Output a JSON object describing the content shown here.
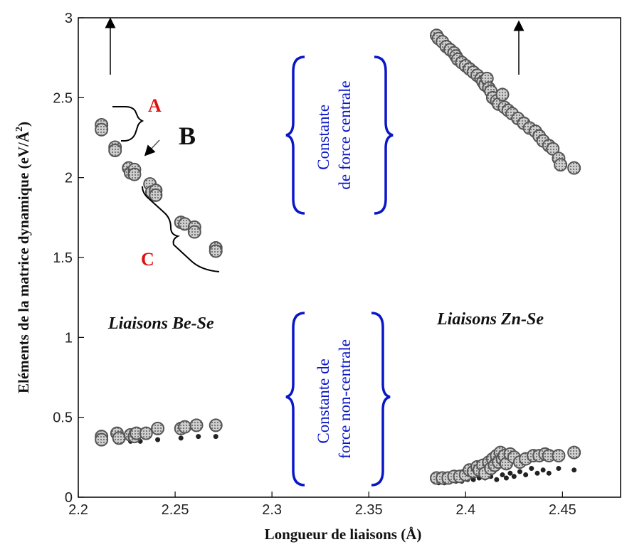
{
  "chart_data": {
    "type": "scatter",
    "title": "",
    "xlabel": "Longueur de liaisons (Å)",
    "ylabel_main": "Eléments de la matrice dynamique (eV/Å",
    "ylabel_sup": "2",
    "ylabel_close": ")",
    "xlim": [
      2.2,
      2.48
    ],
    "ylim": [
      0,
      3
    ],
    "xticks": [
      "2.2",
      "2.25",
      "2.3",
      "2.35",
      "2.4",
      "2.45"
    ],
    "yticks": [
      "0",
      "0.5",
      "1",
      "1.5",
      "2",
      "2.5",
      "3"
    ],
    "grid": false,
    "colors": {
      "blue": "#0a16c8",
      "red": "#e01010",
      "marker": "#555555"
    },
    "series": [
      {
        "group": "Be-Se central",
        "points": [
          [
            2.212,
            2.33
          ],
          [
            2.212,
            2.3
          ],
          [
            2.219,
            2.19
          ],
          [
            2.219,
            2.17
          ],
          [
            2.226,
            2.06
          ],
          [
            2.227,
            2.03
          ],
          [
            2.229,
            2.05
          ],
          [
            2.229,
            2.02
          ],
          [
            2.237,
            1.96
          ],
          [
            2.238,
            1.91
          ],
          [
            2.24,
            1.92
          ],
          [
            2.24,
            1.89
          ],
          [
            2.253,
            1.72
          ],
          [
            2.255,
            1.71
          ],
          [
            2.26,
            1.69
          ],
          [
            2.26,
            1.66
          ],
          [
            2.271,
            1.56
          ],
          [
            2.271,
            1.54
          ]
        ]
      },
      {
        "group": "Be-Se non-central",
        "points": [
          [
            2.212,
            0.38
          ],
          [
            2.212,
            0.36
          ],
          [
            2.22,
            0.4
          ],
          [
            2.221,
            0.37
          ],
          [
            2.227,
            0.39
          ],
          [
            2.229,
            0.38
          ],
          [
            2.23,
            0.4
          ],
          [
            2.235,
            0.4
          ],
          [
            2.241,
            0.43
          ],
          [
            2.253,
            0.43
          ],
          [
            2.255,
            0.44
          ],
          [
            2.261,
            0.45
          ],
          [
            2.271,
            0.45
          ]
        ],
        "small_points": [
          [
            2.214,
            0.35
          ],
          [
            2.221,
            0.35
          ],
          [
            2.227,
            0.35
          ],
          [
            2.232,
            0.35
          ],
          [
            2.241,
            0.36
          ],
          [
            2.253,
            0.37
          ],
          [
            2.262,
            0.38
          ],
          [
            2.271,
            0.38
          ]
        ]
      },
      {
        "group": "Zn-Se central",
        "points": [
          [
            2.385,
            2.89
          ],
          [
            2.386,
            2.87
          ],
          [
            2.388,
            2.85
          ],
          [
            2.39,
            2.82
          ],
          [
            2.392,
            2.8
          ],
          [
            2.394,
            2.78
          ],
          [
            2.395,
            2.76
          ],
          [
            2.396,
            2.74
          ],
          [
            2.398,
            2.72
          ],
          [
            2.4,
            2.7
          ],
          [
            2.402,
            2.68
          ],
          [
            2.404,
            2.66
          ],
          [
            2.406,
            2.64
          ],
          [
            2.408,
            2.62
          ],
          [
            2.409,
            2.6
          ],
          [
            2.41,
            2.58
          ],
          [
            2.411,
            2.62
          ],
          [
            2.412,
            2.56
          ],
          [
            2.413,
            2.54
          ],
          [
            2.414,
            2.5
          ],
          [
            2.416,
            2.48
          ],
          [
            2.417,
            2.46
          ],
          [
            2.419,
            2.52
          ],
          [
            2.42,
            2.44
          ],
          [
            2.422,
            2.42
          ],
          [
            2.424,
            2.4
          ],
          [
            2.427,
            2.37
          ],
          [
            2.43,
            2.34
          ],
          [
            2.433,
            2.31
          ],
          [
            2.436,
            2.29
          ],
          [
            2.438,
            2.26
          ],
          [
            2.44,
            2.23
          ],
          [
            2.443,
            2.2
          ],
          [
            2.445,
            2.18
          ],
          [
            2.448,
            2.12
          ],
          [
            2.449,
            2.08
          ],
          [
            2.456,
            2.06
          ]
        ]
      },
      {
        "group": "Zn-Se non-central",
        "points": [
          [
            2.385,
            0.12
          ],
          [
            2.388,
            0.12
          ],
          [
            2.391,
            0.12
          ],
          [
            2.394,
            0.13
          ],
          [
            2.397,
            0.13
          ],
          [
            2.4,
            0.14
          ],
          [
            2.402,
            0.17
          ],
          [
            2.404,
            0.16
          ],
          [
            2.406,
            0.19
          ],
          [
            2.407,
            0.17
          ],
          [
            2.409,
            0.2
          ],
          [
            2.41,
            0.15
          ],
          [
            2.412,
            0.22
          ],
          [
            2.413,
            0.18
          ],
          [
            2.414,
            0.24
          ],
          [
            2.415,
            0.2
          ],
          [
            2.416,
            0.26
          ],
          [
            2.417,
            0.22
          ],
          [
            2.418,
            0.28
          ],
          [
            2.419,
            0.24
          ],
          [
            2.42,
            0.26
          ],
          [
            2.421,
            0.21
          ],
          [
            2.423,
            0.27
          ],
          [
            2.425,
            0.25
          ],
          [
            2.428,
            0.22
          ],
          [
            2.431,
            0.24
          ],
          [
            2.435,
            0.26
          ],
          [
            2.438,
            0.26
          ],
          [
            2.441,
            0.27
          ],
          [
            2.443,
            0.26
          ],
          [
            2.448,
            0.26
          ],
          [
            2.456,
            0.28
          ]
        ],
        "small_points": [
          [
            2.386,
            0.09
          ],
          [
            2.389,
            0.09
          ],
          [
            2.392,
            0.1
          ],
          [
            2.395,
            0.1
          ],
          [
            2.398,
            0.1
          ],
          [
            2.401,
            0.11
          ],
          [
            2.404,
            0.11
          ],
          [
            2.407,
            0.12
          ],
          [
            2.41,
            0.12
          ],
          [
            2.413,
            0.13
          ],
          [
            2.416,
            0.11
          ],
          [
            2.419,
            0.14
          ],
          [
            2.421,
            0.12
          ],
          [
            2.423,
            0.15
          ],
          [
            2.425,
            0.13
          ],
          [
            2.428,
            0.16
          ],
          [
            2.431,
            0.14
          ],
          [
            2.434,
            0.18
          ],
          [
            2.437,
            0.15
          ],
          [
            2.44,
            0.17
          ],
          [
            2.443,
            0.15
          ],
          [
            2.448,
            0.18
          ],
          [
            2.456,
            0.17
          ]
        ]
      }
    ],
    "annotations": {
      "be_se_label": "Liaisons Be-Se",
      "zn_se_label": "Liaisons Zn-Se",
      "central_line1": "Constante",
      "central_line2": "de force centrale",
      "noncentral_line1": "Constante de",
      "noncentral_line2": "force non-centrale",
      "label_a": "A",
      "label_b": "B",
      "label_c": "C"
    }
  }
}
